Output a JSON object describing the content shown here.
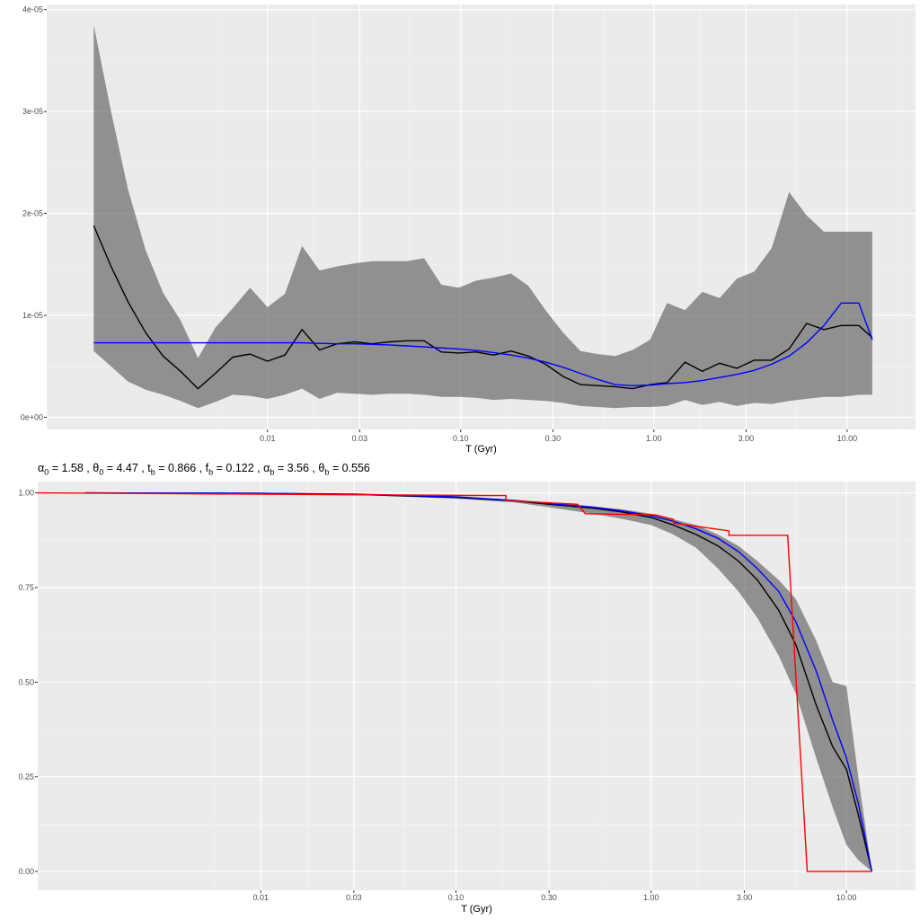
{
  "params": {
    "alpha0": "α",
    "alpha0_sub": "0",
    "alpha0_val": " = 1.58 , ",
    "theta0": "θ",
    "theta0_sub": "0",
    "theta0_val": " = 4.47 , ",
    "tb": "t",
    "tb_sub": "b",
    "tb_val": " = 0.866 , ",
    "fb": "f",
    "fb_sub": "b",
    "fb_val": " = 0.122 , ",
    "alphab": "α",
    "alphab_sub": "b",
    "alphab_val": " = 3.56 , ",
    "thetab": "θ",
    "thetab_sub": "b",
    "thetab_val": " = 0.556"
  },
  "chart_data": [
    {
      "type": "line",
      "xlabel": "T (Gyr)",
      "ylabel": "",
      "xscale": "log",
      "x_ticks": [
        0.01,
        0.03,
        0.1,
        0.3,
        1.0,
        3.0,
        10.0
      ],
      "x_tick_labels": [
        "0.01",
        "0.03",
        "0.10",
        "0.30",
        "1.00",
        "3.00",
        "10.00"
      ],
      "y_ticks": [
        0,
        1e-05,
        2e-05,
        3e-05,
        4e-05
      ],
      "y_tick_labels": [
        "0e+00",
        "1e-05",
        "2e-05",
        "3e-05",
        "4e-05"
      ],
      "xlim": [
        0.00072,
        22.6
      ],
      "ylim": [
        -1.2e-06,
        4.05e-05
      ],
      "grid": true,
      "x": [
        0.00126,
        0.00155,
        0.0019,
        0.00234,
        0.00288,
        0.00355,
        0.00437,
        0.00537,
        0.00661,
        0.00813,
        0.01,
        0.0123,
        0.0151,
        0.0186,
        0.0229,
        0.0282,
        0.0347,
        0.0427,
        0.0525,
        0.0646,
        0.0794,
        0.0977,
        0.12,
        0.148,
        0.182,
        0.224,
        0.275,
        0.339,
        0.417,
        0.513,
        0.631,
        0.776,
        0.955,
        1.17,
        1.45,
        1.78,
        2.19,
        2.69,
        3.31,
        4.07,
        5.01,
        6.17,
        7.59,
        9.33,
        11.5,
        13.5
      ],
      "band_upper": [
        3.85e-05,
        3e-05,
        2.23e-05,
        1.64e-05,
        1.22e-05,
        9.5e-06,
        5.8e-06,
        8.8e-06,
        1.07e-05,
        1.27e-05,
        1.08e-05,
        1.21e-05,
        1.68e-05,
        1.44e-05,
        1.48e-05,
        1.51e-05,
        1.53e-05,
        1.53e-05,
        1.53e-05,
        1.56e-05,
        1.3e-05,
        1.27e-05,
        1.34e-05,
        1.37e-05,
        1.41e-05,
        1.29e-05,
        1.05e-05,
        8.3e-06,
        6.5e-06,
        6.2e-06,
        6e-06,
        6.6e-06,
        7.6e-06,
        1.12e-05,
        1.05e-05,
        1.23e-05,
        1.17e-05,
        1.36e-05,
        1.43e-05,
        1.66e-05,
        2.21e-05,
        1.98e-05,
        1.82e-05,
        1.82e-05,
        1.82e-05,
        1.82e-05
      ],
      "band_lower": [
        6.5e-06,
        5e-06,
        3.5e-06,
        2.7e-06,
        2.2e-06,
        1.6e-06,
        9e-07,
        1.5e-06,
        2.2e-06,
        2.1e-06,
        1.8e-06,
        2.2e-06,
        2.8e-06,
        1.8e-06,
        2.4e-06,
        2.3e-06,
        2.2e-06,
        2.3e-06,
        2.3e-06,
        2.2e-06,
        2e-06,
        2e-06,
        1.9e-06,
        1.7e-06,
        1.8e-06,
        1.7e-06,
        1.6e-06,
        1.4e-06,
        1.1e-06,
        1e-06,
        9e-07,
        1e-06,
        1e-06,
        1.1e-06,
        1.7e-06,
        1.2e-06,
        1.5e-06,
        1.1e-06,
        1.4e-06,
        1.3e-06,
        1.6e-06,
        1.8e-06,
        2e-06,
        2e-06,
        2.2e-06,
        2.2e-06
      ],
      "series": [
        {
          "color": "#000000",
          "values": [
            1.88e-05,
            1.48e-05,
            1.13e-05,
            8.3e-06,
            6e-06,
            4.5e-06,
            2.8e-06,
            4.3e-06,
            5.9e-06,
            6.2e-06,
            5.5e-06,
            6.1e-06,
            8.6e-06,
            6.6e-06,
            7.2e-06,
            7.4e-06,
            7.2e-06,
            7.4e-06,
            7.5e-06,
            7.5e-06,
            6.4e-06,
            6.3e-06,
            6.4e-06,
            6.1e-06,
            6.5e-06,
            6e-06,
            5.2e-06,
            4e-06,
            3.2e-06,
            3.1e-06,
            3e-06,
            2.8e-06,
            3.2e-06,
            3.4e-06,
            5.4e-06,
            4.5e-06,
            5.3e-06,
            4.8e-06,
            5.6e-06,
            5.6e-06,
            6.7e-06,
            9.2e-06,
            8.6e-06,
            9e-06,
            9e-06,
            7.8e-06
          ]
        },
        {
          "color": "#0000FF",
          "values": [
            7.3e-06,
            7.3e-06,
            7.3e-06,
            7.3e-06,
            7.3e-06,
            7.3e-06,
            7.3e-06,
            7.3e-06,
            7.3e-06,
            7.3e-06,
            7.3e-06,
            7.3e-06,
            7.3e-06,
            7.25e-06,
            7.2e-06,
            7.2e-06,
            7.15e-06,
            7.1e-06,
            7e-06,
            6.9e-06,
            6.8e-06,
            6.7e-06,
            6.55e-06,
            6.35e-06,
            6.1e-06,
            5.8e-06,
            5.4e-06,
            4.9e-06,
            4.3e-06,
            3.7e-06,
            3.2e-06,
            3.1e-06,
            3.15e-06,
            3.3e-06,
            3.4e-06,
            3.6e-06,
            3.9e-06,
            4.2e-06,
            4.6e-06,
            5.2e-06,
            6e-06,
            7.3e-06,
            9e-06,
            1.12e-05,
            1.12e-05,
            7.6e-06
          ]
        }
      ]
    },
    {
      "type": "line",
      "title": "",
      "xlabel": "T (Gyr)",
      "ylabel": "",
      "xscale": "log",
      "x_ticks": [
        0.01,
        0.03,
        0.1,
        0.3,
        1.0,
        3.0,
        10.0
      ],
      "x_tick_labels": [
        "0.01",
        "0.03",
        "0.10",
        "0.30",
        "1.00",
        "3.00",
        "10.00"
      ],
      "y_ticks": [
        0,
        0.25,
        0.5,
        0.75,
        1.0
      ],
      "y_tick_labels": [
        "0.00",
        "0.25",
        "0.50",
        "0.75",
        "1.00"
      ],
      "xlim": [
        0.00072,
        22.6
      ],
      "ylim": [
        -0.05,
        1.03
      ],
      "grid": true,
      "x": [
        0.00126,
        0.01,
        0.03,
        0.1,
        0.2,
        0.3,
        0.5,
        0.7,
        1.0,
        1.3,
        1.7,
        2.2,
        2.8,
        3.5,
        4.5,
        5.5,
        7.0,
        8.5,
        10.0,
        11.5,
        13.5
      ],
      "band_upper": [
        1.0,
        0.999,
        0.997,
        0.99,
        0.982,
        0.975,
        0.965,
        0.957,
        0.945,
        0.93,
        0.915,
        0.89,
        0.86,
        0.82,
        0.77,
        0.72,
        0.61,
        0.5,
        0.49,
        0.25,
        0.0
      ],
      "band_lower": [
        1.0,
        0.999,
        0.995,
        0.985,
        0.975,
        0.962,
        0.945,
        0.932,
        0.915,
        0.89,
        0.855,
        0.8,
        0.74,
        0.67,
        0.57,
        0.47,
        0.3,
        0.17,
        0.07,
        0.03,
        0.0
      ],
      "series": [
        {
          "color": "#000000",
          "values": [
            1.0,
            0.999,
            0.996,
            0.988,
            0.979,
            0.97,
            0.96,
            0.95,
            0.935,
            0.915,
            0.89,
            0.86,
            0.82,
            0.77,
            0.69,
            0.6,
            0.44,
            0.33,
            0.27,
            0.15,
            0.0
          ]
        },
        {
          "color": "#0000FF",
          "values": [
            1.0,
            0.999,
            0.997,
            0.99,
            0.98,
            0.972,
            0.962,
            0.953,
            0.94,
            0.925,
            0.905,
            0.88,
            0.845,
            0.8,
            0.74,
            0.66,
            0.53,
            0.4,
            0.3,
            0.18,
            0.0
          ]
        }
      ],
      "red_step": {
        "color": "#FF0000",
        "x": [
          0.00072,
          0.15,
          0.18,
          0.18,
          0.42,
          0.46,
          0.46,
          1.05,
          1.3,
          1.3,
          2.5,
          2.5,
          5.0,
          6.3,
          6.3,
          13.5
        ],
        "y": [
          1.0,
          0.993,
          0.993,
          0.98,
          0.97,
          0.945,
          0.945,
          0.942,
          0.93,
          0.92,
          0.9,
          0.888,
          0.888,
          0.0,
          0.0,
          0.0
        ]
      }
    }
  ]
}
